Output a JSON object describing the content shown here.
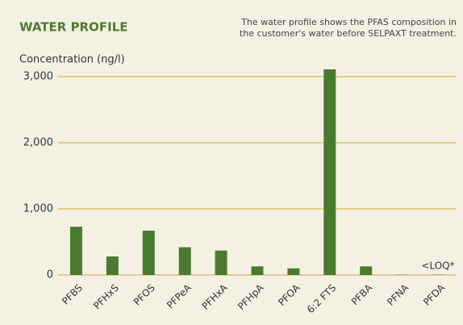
{
  "chart_data": {
    "type": "bar",
    "title": "WATER PROFILE",
    "subtitle": [
      "The water profile shows the PFAS composition in",
      "the customer's water before SELPAXT treatment."
    ],
    "y_label": "Concentration (ng/l)",
    "categories": [
      "PFBS",
      "PFHxS",
      "PFOS",
      "PFPeA",
      "PFHxA",
      "PFHpA",
      "PFOA",
      "6:2 FTS",
      "PFBA",
      "PFNA",
      "PFDA"
    ],
    "values": [
      730,
      280,
      670,
      420,
      370,
      130,
      100,
      3110,
      130,
      5,
      5
    ],
    "color": "#4a7a2f",
    "ylim": [
      0,
      3000
    ],
    "yticks": [
      0,
      {
        "value": 1000,
        "label": "1,000"
      },
      {
        "value": 2000,
        "label": "2,000"
      },
      {
        "value": 3000,
        "label": "3,000"
      }
    ],
    "grid": true,
    "grid_color": "#d6a92a",
    "annotation": "<LOQ*"
  }
}
